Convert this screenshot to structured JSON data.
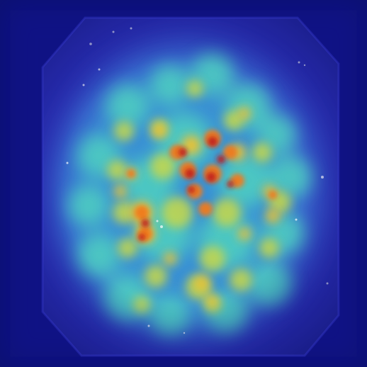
{
  "image": {
    "kind": "endoscopic heatmap overlay",
    "palette": {
      "background": "#0a0f6e",
      "frame": "#2a2ab0",
      "low": "#3a3fd0",
      "mid_low": "#3a9ad8",
      "mid": "#4fd0c0",
      "mid_high": "#c8d84a",
      "high": "#f2c12e",
      "hot": "#f07a1a",
      "hottest": "#c01f1a"
    },
    "mask_shape": "octagon"
  }
}
